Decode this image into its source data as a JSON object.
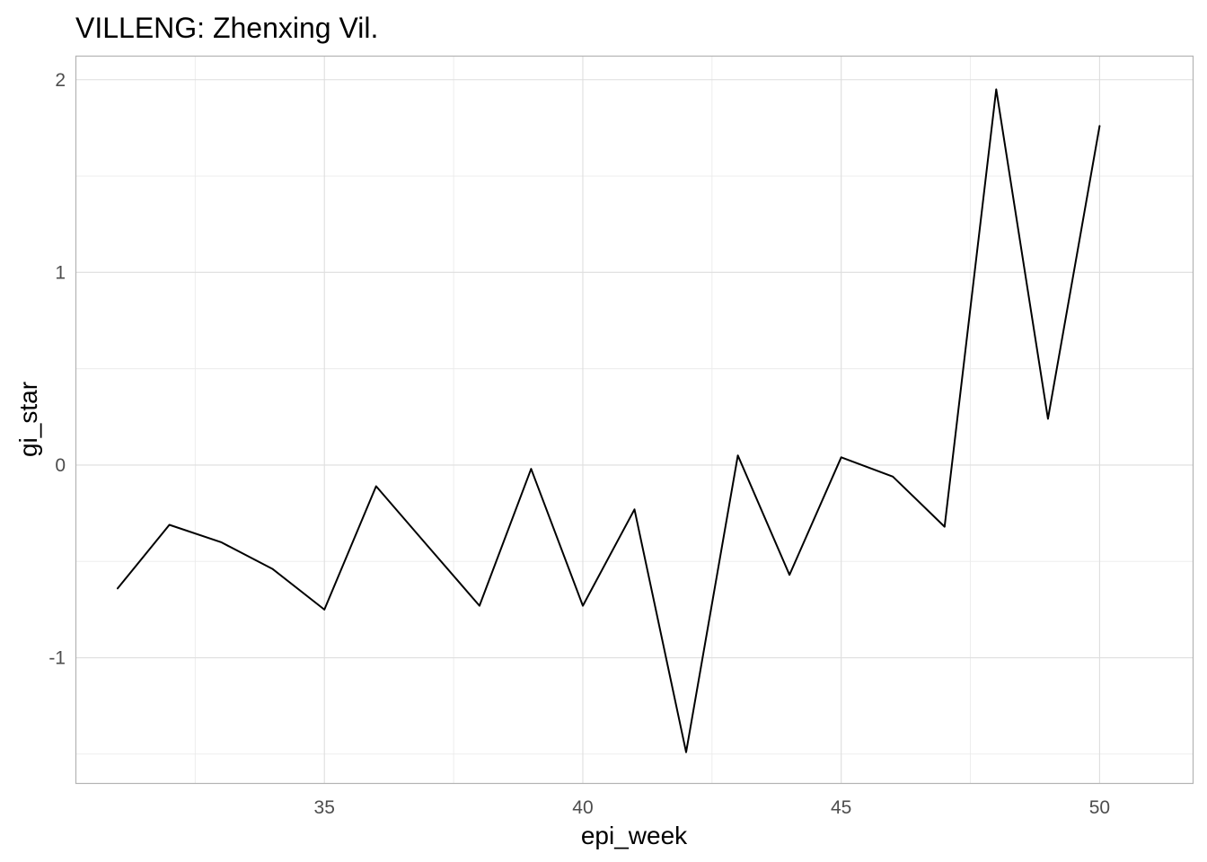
{
  "chart_data": {
    "type": "line",
    "title": "VILLENG: Zhenxing Vil.",
    "xlabel": "epi_week",
    "ylabel": "gi_star",
    "x": [
      31,
      32,
      33,
      34,
      35,
      36,
      37,
      38,
      39,
      40,
      41,
      42,
      43,
      44,
      45,
      46,
      47,
      48,
      49,
      50
    ],
    "series": [
      {
        "values": [
          -0.64,
          -0.31,
          -0.4,
          -0.54,
          -0.75,
          -0.11,
          -0.42,
          -0.73,
          -0.02,
          -0.73,
          -0.23,
          -1.49,
          0.05,
          -0.57,
          0.04,
          -0.06,
          -0.32,
          1.95,
          0.24,
          1.76
        ]
      }
    ],
    "xlim": [
      30.2,
      51.8
    ],
    "ylim": [
      -1.65,
      2.12
    ],
    "x_ticks": [
      35,
      40,
      45,
      50
    ],
    "x_tick_labels": [
      "35",
      "40",
      "45",
      "50"
    ],
    "y_ticks": [
      -1,
      0,
      1,
      2
    ],
    "y_tick_labels": [
      "-1",
      "0",
      "1",
      "2"
    ],
    "grid": true,
    "line_color": "#000000"
  }
}
